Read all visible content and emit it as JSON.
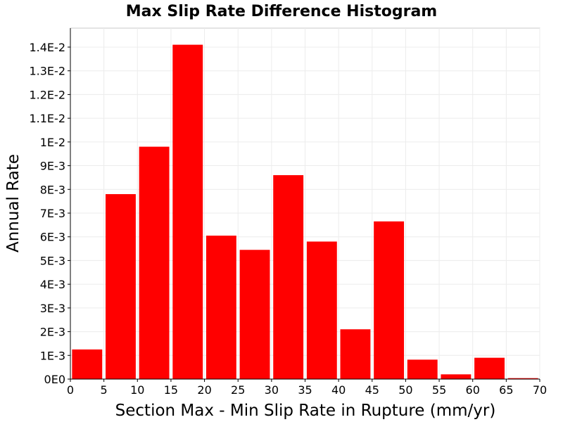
{
  "chart_data": {
    "type": "bar",
    "title": "Max Slip Rate Difference Histogram",
    "xlabel": "Section Max - Min Slip Rate in Rupture (mm/yr)",
    "ylabel": "Annual Rate",
    "xlim": [
      0,
      70
    ],
    "ylim": [
      0,
      0.0148
    ],
    "bin_width": 5,
    "bar_gap_fraction": 0.1,
    "x_ticks": [
      0,
      5,
      10,
      15,
      20,
      25,
      30,
      35,
      40,
      45,
      50,
      55,
      60,
      65,
      70
    ],
    "x_tick_labels": [
      "0",
      "5",
      "10",
      "15",
      "20",
      "25",
      "30",
      "35",
      "40",
      "45",
      "50",
      "55",
      "60",
      "65",
      "70"
    ],
    "y_ticks": [
      0,
      0.001,
      0.002,
      0.003,
      0.004,
      0.005,
      0.006,
      0.007,
      0.008,
      0.009,
      0.01,
      0.011,
      0.012,
      0.013,
      0.014
    ],
    "y_tick_labels": [
      "0E0",
      "1E-3",
      "2E-3",
      "3E-3",
      "4E-3",
      "5E-3",
      "6E-3",
      "7E-3",
      "8E-3",
      "9E-3",
      "1E-2",
      "1.1E-2",
      "1.2E-2",
      "1.3E-2",
      "1.4E-2"
    ],
    "grid": true,
    "bars": [
      {
        "x_start": 0,
        "x_end": 5,
        "value": 0.00125
      },
      {
        "x_start": 5,
        "x_end": 10,
        "value": 0.0078
      },
      {
        "x_start": 10,
        "x_end": 15,
        "value": 0.0098
      },
      {
        "x_start": 15,
        "x_end": 20,
        "value": 0.0141
      },
      {
        "x_start": 20,
        "x_end": 25,
        "value": 0.00605
      },
      {
        "x_start": 25,
        "x_end": 30,
        "value": 0.00545
      },
      {
        "x_start": 30,
        "x_end": 35,
        "value": 0.0086
      },
      {
        "x_start": 35,
        "x_end": 40,
        "value": 0.0058
      },
      {
        "x_start": 40,
        "x_end": 45,
        "value": 0.0021
      },
      {
        "x_start": 45,
        "x_end": 50,
        "value": 0.00665
      },
      {
        "x_start": 50,
        "x_end": 55,
        "value": 0.00082
      },
      {
        "x_start": 55,
        "x_end": 60,
        "value": 0.0002
      },
      {
        "x_start": 60,
        "x_end": 65,
        "value": 0.0009
      },
      {
        "x_start": 65,
        "x_end": 70,
        "value": 4e-05
      }
    ],
    "colors": {
      "bar": "#ff0000",
      "grid": "#ececec",
      "border": "#c8c8c8"
    }
  }
}
